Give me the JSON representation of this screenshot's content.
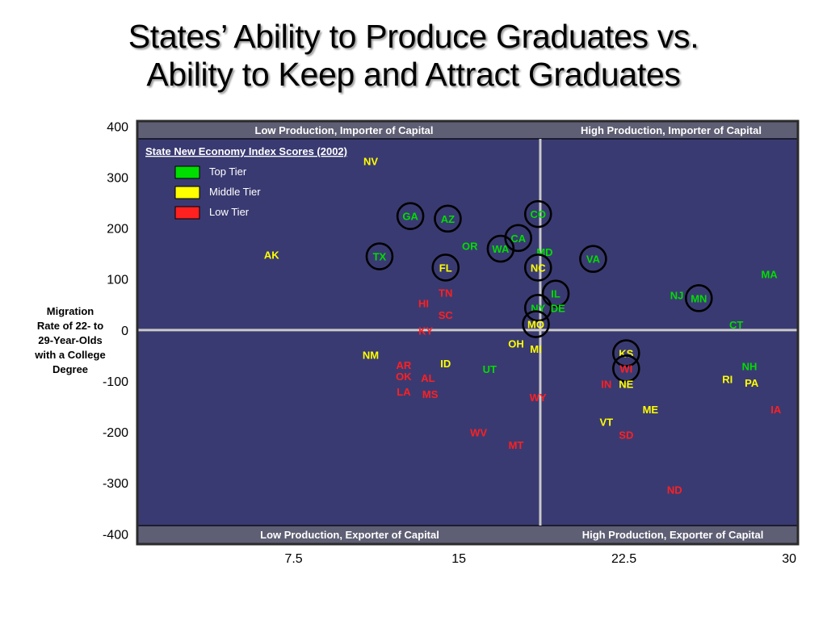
{
  "title": {
    "line1": "States’ Ability to Produce Graduates vs.",
    "line2": "Ability to Keep and Attract Graduates"
  },
  "colors": {
    "plot_bg": "#3a3a72",
    "band_bg": "#5e5e74",
    "frame": "#2b2b2b",
    "cross": "#c9c9c9",
    "top_tier": "#00dd00",
    "middle_tier": "#ffff00",
    "low_tier": "#ff2020",
    "circle": "#000000"
  },
  "quadrant_labels": {
    "top_left": "Low Production, Importer of Capital",
    "top_right": "High Production, Importer of Capital",
    "bottom_left": "Low Production, Exporter of Capital",
    "bottom_right": "High Production, Exporter of Capital"
  },
  "legend": {
    "title": "State New Economy Index Scores (2002)",
    "items": [
      {
        "label": "Top Tier",
        "tier": "top"
      },
      {
        "label": "Middle Tier",
        "tier": "middle"
      },
      {
        "label": "Low Tier",
        "tier": "low"
      }
    ]
  },
  "y_axis_label": {
    "line1": "Migration",
    "line2": "Rate of 22- to",
    "line3": "29-Year-Olds",
    "line4": "with a College",
    "line5": "Degree"
  },
  "chart_data": {
    "type": "scatter",
    "xlabel": "",
    "ylabel": "Migration Rate of 22- to 29-Year-Olds with a College Degree",
    "x_ticks": [
      "7.5",
      "15",
      "22.5",
      "30"
    ],
    "y_ticks": [
      "400",
      "300",
      "200",
      "100",
      "0",
      "-100",
      "-200",
      "-300",
      "-400"
    ],
    "xlim": [
      0.4,
      30.4
    ],
    "ylim": [
      -420,
      410
    ],
    "crosshair": {
      "x": 18.7,
      "y": 0
    },
    "points": [
      {
        "label": "NV",
        "x": 11.0,
        "y": 330,
        "tier": "middle"
      },
      {
        "label": "GA",
        "x": 12.8,
        "y": 222,
        "tier": "top",
        "circled": true
      },
      {
        "label": "AZ",
        "x": 14.5,
        "y": 217,
        "tier": "top",
        "circled": true
      },
      {
        "label": "CO",
        "x": 18.6,
        "y": 226,
        "tier": "top",
        "circled": true
      },
      {
        "label": "CA",
        "x": 17.7,
        "y": 179,
        "tier": "top",
        "circled": true
      },
      {
        "label": "OR",
        "x": 15.5,
        "y": 164,
        "tier": "top"
      },
      {
        "label": "WA",
        "x": 16.9,
        "y": 158,
        "tier": "top",
        "circled": true
      },
      {
        "label": "MD",
        "x": 18.9,
        "y": 152,
        "tier": "top"
      },
      {
        "label": "AK",
        "x": 6.5,
        "y": 146,
        "tier": "middle"
      },
      {
        "label": "TX",
        "x": 11.4,
        "y": 143,
        "tier": "top",
        "circled": true
      },
      {
        "label": "VA",
        "x": 21.1,
        "y": 138,
        "tier": "top",
        "circled": true
      },
      {
        "label": "FL",
        "x": 14.4,
        "y": 121,
        "tier": "middle",
        "circled": true
      },
      {
        "label": "NC",
        "x": 18.6,
        "y": 121,
        "tier": "middle",
        "circled": true
      },
      {
        "label": "MA",
        "x": 29.1,
        "y": 108,
        "tier": "top"
      },
      {
        "label": "TN",
        "x": 14.4,
        "y": 72,
        "tier": "low"
      },
      {
        "label": "IL",
        "x": 19.4,
        "y": 70,
        "tier": "top",
        "circled": true
      },
      {
        "label": "NJ",
        "x": 24.9,
        "y": 67,
        "tier": "top"
      },
      {
        "label": "MN",
        "x": 25.9,
        "y": 61,
        "tier": "top",
        "circled": true
      },
      {
        "label": "HI",
        "x": 13.4,
        "y": 51,
        "tier": "low"
      },
      {
        "label": "NY",
        "x": 18.6,
        "y": 42,
        "tier": "top",
        "circled": true
      },
      {
        "label": "DE",
        "x": 19.5,
        "y": 42,
        "tier": "top"
      },
      {
        "label": "SC",
        "x": 14.4,
        "y": 28,
        "tier": "low"
      },
      {
        "label": "MO",
        "x": 18.5,
        "y": 10,
        "tier": "middle",
        "circled": true
      },
      {
        "label": "CT",
        "x": 27.6,
        "y": 9,
        "tier": "top"
      },
      {
        "label": "KY",
        "x": 13.5,
        "y": -3,
        "tier": "low"
      },
      {
        "label": "OH",
        "x": 17.6,
        "y": -28,
        "tier": "middle"
      },
      {
        "label": "MI",
        "x": 18.5,
        "y": -38,
        "tier": "middle"
      },
      {
        "label": "KS",
        "x": 22.6,
        "y": -47,
        "tier": "middle",
        "circled": true
      },
      {
        "label": "NM",
        "x": 11.0,
        "y": -50,
        "tier": "middle"
      },
      {
        "label": "ID",
        "x": 14.4,
        "y": -67,
        "tier": "middle"
      },
      {
        "label": "AR",
        "x": 12.5,
        "y": -70,
        "tier": "low"
      },
      {
        "label": "NH",
        "x": 28.2,
        "y": -72,
        "tier": "top"
      },
      {
        "label": "UT",
        "x": 16.4,
        "y": -78,
        "tier": "top"
      },
      {
        "label": "WI",
        "x": 22.6,
        "y": -77,
        "tier": "low",
        "circled": true
      },
      {
        "label": "OK",
        "x": 12.5,
        "y": -92,
        "tier": "low"
      },
      {
        "label": "AL",
        "x": 13.6,
        "y": -95,
        "tier": "low"
      },
      {
        "label": "RI",
        "x": 27.2,
        "y": -98,
        "tier": "middle"
      },
      {
        "label": "IN",
        "x": 21.7,
        "y": -107,
        "tier": "low"
      },
      {
        "label": "NE",
        "x": 22.6,
        "y": -107,
        "tier": "middle"
      },
      {
        "label": "PA",
        "x": 28.3,
        "y": -105,
        "tier": "middle"
      },
      {
        "label": "LA",
        "x": 12.5,
        "y": -122,
        "tier": "low"
      },
      {
        "label": "MS",
        "x": 13.7,
        "y": -127,
        "tier": "low"
      },
      {
        "label": "WY",
        "x": 18.6,
        "y": -133,
        "tier": "low"
      },
      {
        "label": "ME",
        "x": 23.7,
        "y": -157,
        "tier": "middle"
      },
      {
        "label": "IA",
        "x": 29.4,
        "y": -157,
        "tier": "low"
      },
      {
        "label": "VT",
        "x": 21.7,
        "y": -182,
        "tier": "middle"
      },
      {
        "label": "WV",
        "x": 15.9,
        "y": -202,
        "tier": "low"
      },
      {
        "label": "SD",
        "x": 22.6,
        "y": -207,
        "tier": "low"
      },
      {
        "label": "MT",
        "x": 17.6,
        "y": -227,
        "tier": "low"
      },
      {
        "label": "ND",
        "x": 24.8,
        "y": -315,
        "tier": "low"
      }
    ]
  }
}
